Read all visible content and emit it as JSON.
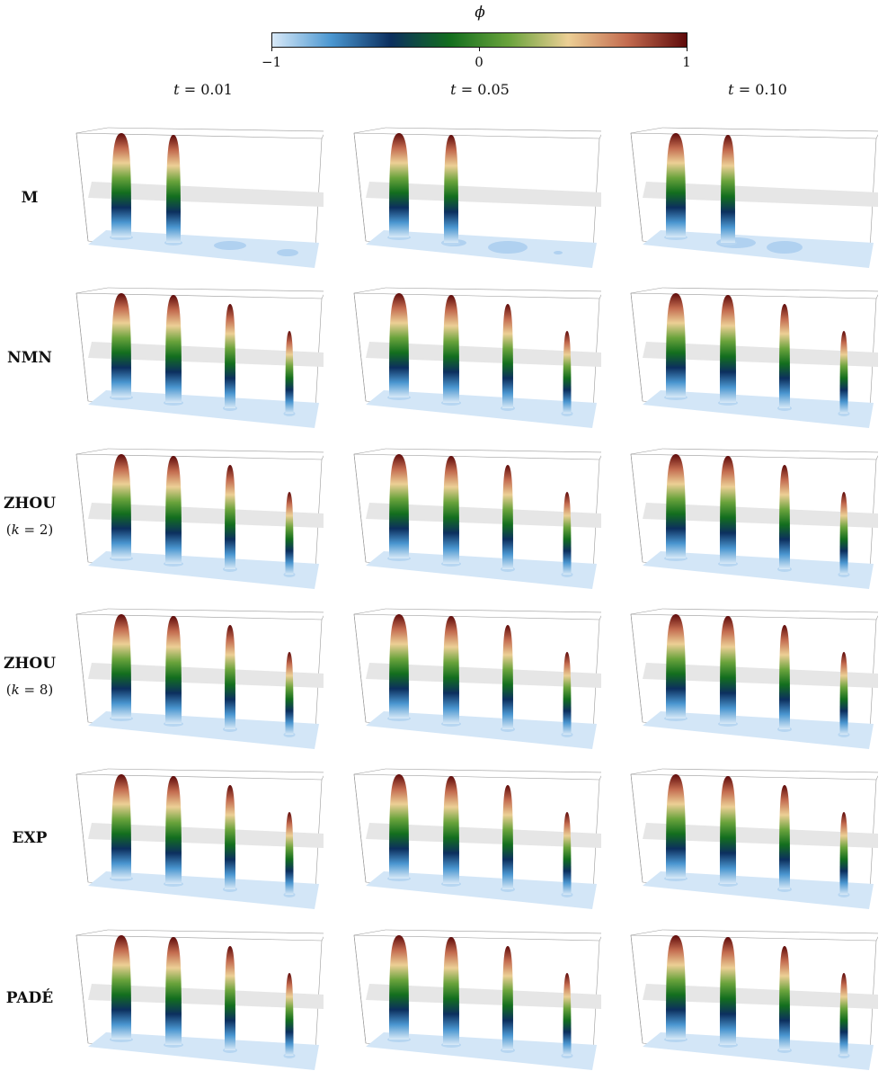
{
  "colorbar": {
    "symbol": "ϕ",
    "ticks": [
      "−1",
      "0",
      "1"
    ],
    "tick_values": [
      -1,
      0,
      1
    ],
    "colors": [
      "#d8e9f8",
      "#4a96d0",
      "#0c2f5e",
      "#136e1e",
      "#6aa33c",
      "#eccf95",
      "#c36b4f",
      "#5e0a0a"
    ]
  },
  "columns": [
    {
      "var": "t",
      "value": "0.01"
    },
    {
      "var": "t",
      "value": "0.05"
    },
    {
      "var": "t",
      "value": "0.10"
    }
  ],
  "rows": [
    {
      "label": "M",
      "sub": ""
    },
    {
      "label": "NMN",
      "sub": ""
    },
    {
      "label": "ZHOU",
      "sub_open": "(",
      "sub_var": "k",
      "sub_rest": " = 2)"
    },
    {
      "label": "ZHOU",
      "sub_open": "(",
      "sub_var": "k",
      "sub_rest": " = 8)"
    },
    {
      "label": "EXP",
      "sub": ""
    },
    {
      "label": "PADÉ",
      "sub": ""
    }
  ]
}
